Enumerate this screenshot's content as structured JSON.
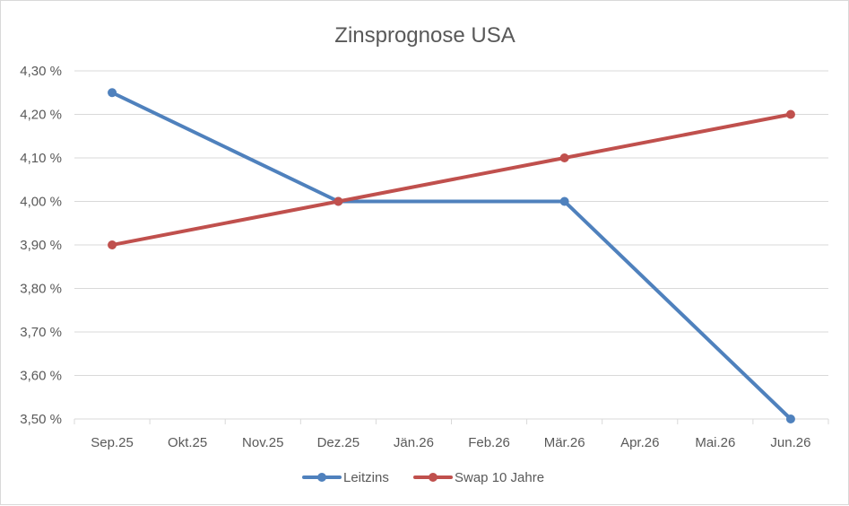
{
  "chart_data": {
    "type": "line",
    "title": "Zinsprognose USA",
    "categories": [
      "Sep.25",
      "Okt.25",
      "Nov.25",
      "Dez.25",
      "Jän.26",
      "Feb.26",
      "Mär.26",
      "Apr.26",
      "Mai.26",
      "Jun.26"
    ],
    "ylim": [
      3.5,
      4.3
    ],
    "yticks": [
      3.5,
      3.6,
      3.7,
      3.8,
      3.9,
      4.0,
      4.1,
      4.2,
      4.3
    ],
    "ytick_labels": [
      "3,50 %",
      "3,60 %",
      "3,70 %",
      "3,80 %",
      "3,90 %",
      "4,00 %",
      "4,10 %",
      "4,20 %",
      "4,30 %"
    ],
    "grid": true,
    "legend_position": "bottom",
    "series": [
      {
        "name": "Leitzins",
        "color": "#4f81bd",
        "points": [
          [
            0,
            4.25
          ],
          [
            3,
            4.0
          ],
          [
            6,
            4.0
          ],
          [
            9,
            3.5
          ]
        ]
      },
      {
        "name": "Swap 10 Jahre",
        "color": "#c0504d",
        "points": [
          [
            0,
            3.9
          ],
          [
            3,
            4.0
          ],
          [
            6,
            4.1
          ],
          [
            9,
            4.2
          ]
        ]
      }
    ]
  }
}
